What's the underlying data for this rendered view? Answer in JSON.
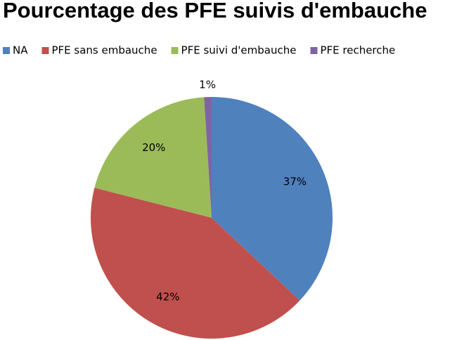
{
  "chart_data": {
    "type": "pie",
    "title": "Pourcentage des PFE suivis d'embauche",
    "categories": [
      "NA",
      "PFE sans embauche",
      "PFE suivi d'embauche",
      "PFE recherche"
    ],
    "values": [
      37,
      42,
      20,
      1
    ],
    "value_labels": [
      "37%",
      "42%",
      "20%",
      "1%"
    ],
    "colors": [
      "#4f81bd",
      "#c0504d",
      "#9bbb59",
      "#8064a2"
    ],
    "legend": "top"
  }
}
